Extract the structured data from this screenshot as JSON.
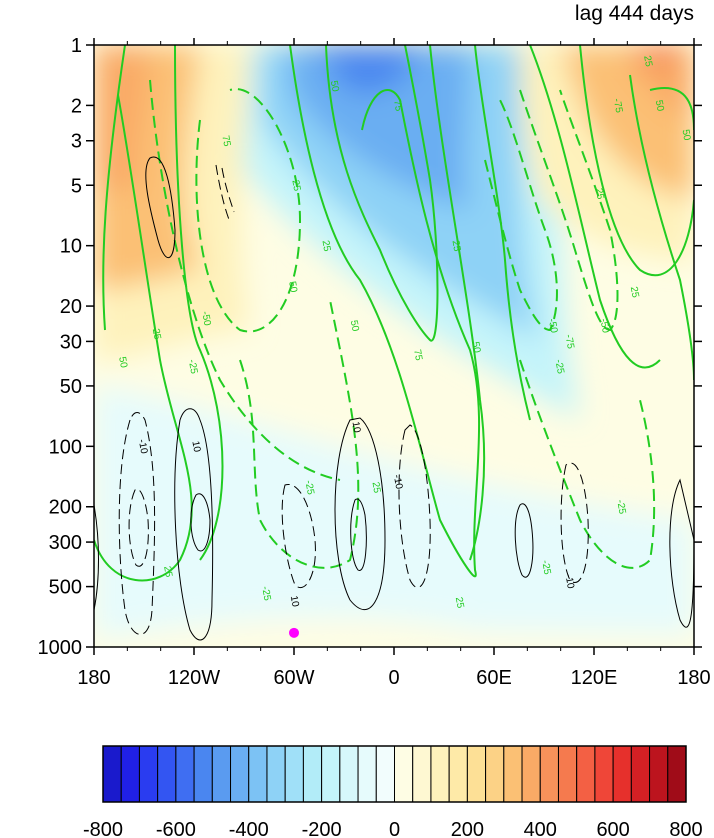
{
  "chart_data": {
    "type": "heatmap",
    "title": "lag 444 days",
    "x_ticks": [
      {
        "value": -180,
        "label": "180"
      },
      {
        "value": -120,
        "label": "120W"
      },
      {
        "value": -60,
        "label": "60W"
      },
      {
        "value": 0,
        "label": "0"
      },
      {
        "value": 60,
        "label": "60E"
      },
      {
        "value": 120,
        "label": "120E"
      },
      {
        "value": 180,
        "label": "180"
      }
    ],
    "y_ticks": [
      {
        "value": 1,
        "label": "1"
      },
      {
        "value": 2,
        "label": "2"
      },
      {
        "value": 3,
        "label": "3"
      },
      {
        "value": 5,
        "label": "5"
      },
      {
        "value": 10,
        "label": "10"
      },
      {
        "value": 20,
        "label": "20"
      },
      {
        "value": 30,
        "label": "30"
      },
      {
        "value": 50,
        "label": "50"
      },
      {
        "value": 100,
        "label": "100"
      },
      {
        "value": 200,
        "label": "200"
      },
      {
        "value": 300,
        "label": "300"
      },
      {
        "value": 500,
        "label": "500"
      },
      {
        "value": 1000,
        "label": "1000"
      }
    ],
    "xlim": [
      -180,
      180
    ],
    "ylim": [
      1,
      1000
    ],
    "y_scale": "log",
    "y_reversed": true,
    "colorbar": {
      "placement": "bottom",
      "min": -800,
      "max": 800,
      "step": 50,
      "tick_labels": [
        "-800",
        "-600",
        "-400",
        "-200",
        "0",
        "200",
        "400",
        "600",
        "800"
      ],
      "colors": [
        "#1a1acc",
        "#2020e6",
        "#2a3cf0",
        "#3355f2",
        "#3f6ef2",
        "#4a86f0",
        "#5a9bf0",
        "#6aaef2",
        "#7cc2f4",
        "#8ed2f6",
        "#a0e0f8",
        "#b2ecf8",
        "#c4f4fa",
        "#d6f8fb",
        "#e6fbfc",
        "#f2fdfd",
        "#fefde4",
        "#fef8d2",
        "#fef2bc",
        "#feeaa8",
        "#fde096",
        "#fcd286",
        "#fbc074",
        "#f9aa66",
        "#f7925a",
        "#f57a4e",
        "#f36044",
        "#ef4638",
        "#e6302c",
        "#d42024",
        "#bc141e",
        "#a00c18"
      ]
    },
    "marker": {
      "lon": -60,
      "pressure": 850,
      "color": "#ff00ff"
    },
    "contour_labels": [
      {
        "text": "75",
        "lon": -100,
        "p": 3,
        "color": "green"
      },
      {
        "text": "-75",
        "lon": 135,
        "p": 2,
        "color": "green"
      },
      {
        "text": "50",
        "lon": -35,
        "p": 1.6,
        "color": "green"
      },
      {
        "text": "75",
        "lon": 3,
        "p": 2,
        "color": "green"
      },
      {
        "text": "25",
        "lon": 153,
        "p": 1.2,
        "color": "green"
      },
      {
        "text": "50",
        "lon": 160,
        "p": 2,
        "color": "green"
      },
      {
        "text": "50",
        "lon": 176,
        "p": 2.8,
        "color": "green"
      },
      {
        "text": "25",
        "lon": -58,
        "p": 5,
        "color": "green"
      },
      {
        "text": "25",
        "lon": -40,
        "p": 10,
        "color": "green"
      },
      {
        "text": "25",
        "lon": 124,
        "p": 5.5,
        "color": "green"
      },
      {
        "text": "50",
        "lon": -60,
        "p": 16,
        "color": "green"
      },
      {
        "text": "-50",
        "lon": -112,
        "p": 23,
        "color": "green"
      },
      {
        "text": "-25",
        "lon": -142,
        "p": 27,
        "color": "green"
      },
      {
        "text": "50",
        "lon": -162,
        "p": 38,
        "color": "green"
      },
      {
        "text": "-25",
        "lon": -120,
        "p": 40,
        "color": "green"
      },
      {
        "text": "50",
        "lon": -23,
        "p": 25,
        "color": "green"
      },
      {
        "text": "75",
        "lon": 15,
        "p": 35,
        "color": "green"
      },
      {
        "text": "25",
        "lon": 38,
        "p": 10,
        "color": "green"
      },
      {
        "text": "50",
        "lon": 50,
        "p": 32,
        "color": "green"
      },
      {
        "text": "-50",
        "lon": 96,
        "p": 25,
        "color": "green"
      },
      {
        "text": "-50",
        "lon": 127,
        "p": 25,
        "color": "green"
      },
      {
        "text": "-75",
        "lon": 106,
        "p": 30,
        "color": "green"
      },
      {
        "text": "-25",
        "lon": 100,
        "p": 40,
        "color": "green"
      },
      {
        "text": "25",
        "lon": 145,
        "p": 17,
        "color": "green"
      },
      {
        "text": "-25",
        "lon": -50,
        "p": 160,
        "color": "green"
      },
      {
        "text": "25",
        "lon": -10,
        "p": 160,
        "color": "green"
      },
      {
        "text": "-25",
        "lon": 137,
        "p": 200,
        "color": "green"
      },
      {
        "text": "-25",
        "lon": 92,
        "p": 400,
        "color": "green"
      },
      {
        "text": "25",
        "lon": -135,
        "p": 420,
        "color": "green"
      },
      {
        "text": "-25",
        "lon": -76,
        "p": 540,
        "color": "green"
      },
      {
        "text": "25",
        "lon": 40,
        "p": 600,
        "color": "green"
      },
      {
        "text": "-10",
        "lon": -150,
        "p": 100,
        "color": "black"
      },
      {
        "text": "10",
        "lon": -118,
        "p": 100,
        "color": "black"
      },
      {
        "text": "10",
        "lon": -22,
        "p": 80,
        "color": "black"
      },
      {
        "text": "-10",
        "lon": 3,
        "p": 150,
        "color": "black"
      },
      {
        "text": "10",
        "lon": -59,
        "p": 590,
        "color": "black"
      },
      {
        "text": "-10",
        "lon": 106,
        "p": 470,
        "color": "black"
      }
    ]
  }
}
